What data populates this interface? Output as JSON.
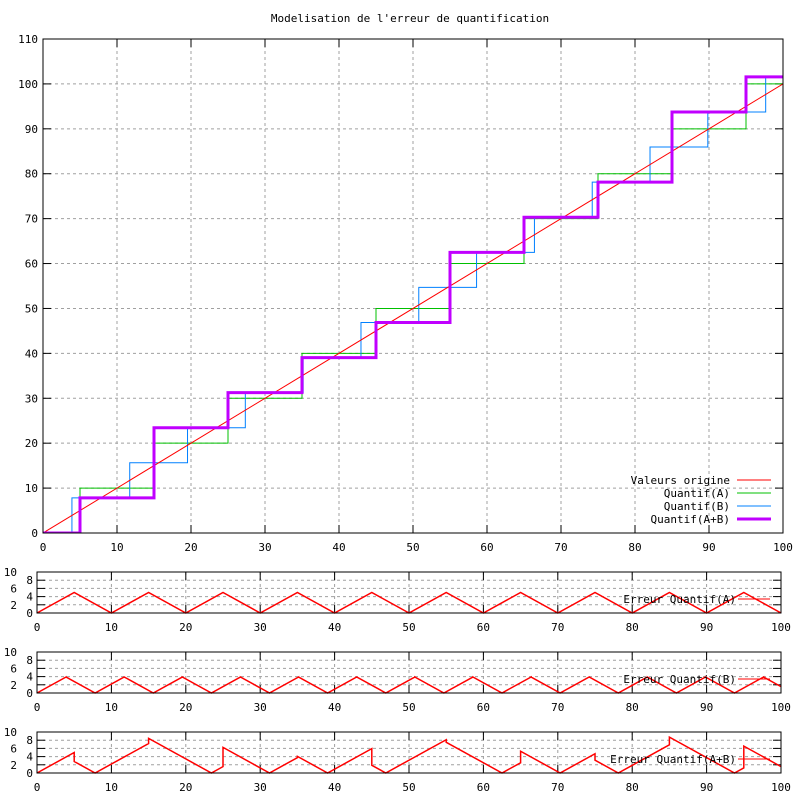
{
  "chart_data": [
    {
      "type": "line",
      "title": "Modelisation de l'erreur de quantification",
      "xlim": [
        0,
        100
      ],
      "ylim": [
        0,
        110
      ],
      "xticks": [
        0,
        10,
        20,
        30,
        40,
        50,
        60,
        70,
        80,
        90,
        100
      ],
      "yticks": [
        0,
        10,
        20,
        30,
        40,
        50,
        60,
        70,
        80,
        90,
        100,
        110
      ],
      "grid": true,
      "legend_position": "bottom-right",
      "series": [
        {
          "name": "Valeurs origine",
          "color": "#ff0000",
          "kind": "line",
          "points": [
            [
              0,
              0
            ],
            [
              100,
              100
            ]
          ]
        },
        {
          "name": "Quantif(A)",
          "color": "#00c000",
          "kind": "steps",
          "steps": [
            [
              0,
              5,
              0
            ],
            [
              5,
              15,
              10
            ],
            [
              15,
              25,
              20
            ],
            [
              25,
              35,
              30
            ],
            [
              35,
              45,
              40
            ],
            [
              45,
              55,
              50
            ],
            [
              55,
              65,
              60
            ],
            [
              65,
              75,
              70
            ],
            [
              75,
              85,
              80
            ],
            [
              85,
              95,
              90
            ],
            [
              95,
              100,
              100
            ]
          ]
        },
        {
          "name": "Quantif(B)",
          "color": "#0080ff",
          "kind": "steps",
          "steps": [
            [
              0,
              3.91,
              0
            ],
            [
              3.91,
              11.72,
              7.81
            ],
            [
              11.72,
              19.53,
              15.63
            ],
            [
              19.53,
              27.34,
              23.44
            ],
            [
              27.34,
              35.16,
              31.25
            ],
            [
              35.16,
              42.97,
              39.06
            ],
            [
              42.97,
              50.78,
              46.88
            ],
            [
              50.78,
              58.59,
              54.69
            ],
            [
              58.59,
              66.41,
              62.5
            ],
            [
              66.41,
              74.22,
              70.31
            ],
            [
              74.22,
              82.03,
              78.13
            ],
            [
              82.03,
              89.84,
              85.94
            ],
            [
              89.84,
              97.66,
              93.75
            ],
            [
              97.66,
              100,
              101.56
            ]
          ]
        },
        {
          "name": "Quantif(A+B)",
          "color": "#c000ff",
          "kind": "steps",
          "thick": true,
          "steps": [
            [
              0,
              5,
              0
            ],
            [
              5,
              15,
              7.81
            ],
            [
              15,
              25,
              23.44
            ],
            [
              25,
              35,
              31.25
            ],
            [
              35,
              45,
              39.06
            ],
            [
              45,
              55,
              46.88
            ],
            [
              55,
              65,
              62.5
            ],
            [
              65,
              75,
              70.31
            ],
            [
              75,
              85,
              78.13
            ],
            [
              85,
              95,
              93.75
            ],
            [
              95,
              100,
              101.56
            ]
          ]
        }
      ]
    },
    {
      "type": "line",
      "xlim": [
        0,
        100
      ],
      "ylim": [
        0,
        10
      ],
      "yticks": [
        0,
        2,
        4,
        6,
        8,
        10
      ],
      "xticks": [
        0,
        10,
        20,
        30,
        40,
        50,
        60,
        70,
        80,
        90,
        100
      ],
      "legend": "Erreur Quantif(A)",
      "color": "#ff0000",
      "error_of": "Quantif(A)"
    },
    {
      "type": "line",
      "xlim": [
        0,
        100
      ],
      "ylim": [
        0,
        10
      ],
      "yticks": [
        0,
        2,
        4,
        6,
        8,
        10
      ],
      "xticks": [
        0,
        10,
        20,
        30,
        40,
        50,
        60,
        70,
        80,
        90,
        100
      ],
      "legend": "Erreur Quantif(B)",
      "color": "#ff0000",
      "error_of": "Quantif(B)"
    },
    {
      "type": "line",
      "xlim": [
        0,
        100
      ],
      "ylim": [
        0,
        10
      ],
      "yticks": [
        0,
        2,
        4,
        6,
        8,
        10
      ],
      "xticks": [
        0,
        10,
        20,
        30,
        40,
        50,
        60,
        70,
        80,
        90,
        100
      ],
      "legend": "Erreur Quantif(A+B)",
      "color": "#ff0000",
      "error_of": "Quantif(A+B)"
    }
  ]
}
